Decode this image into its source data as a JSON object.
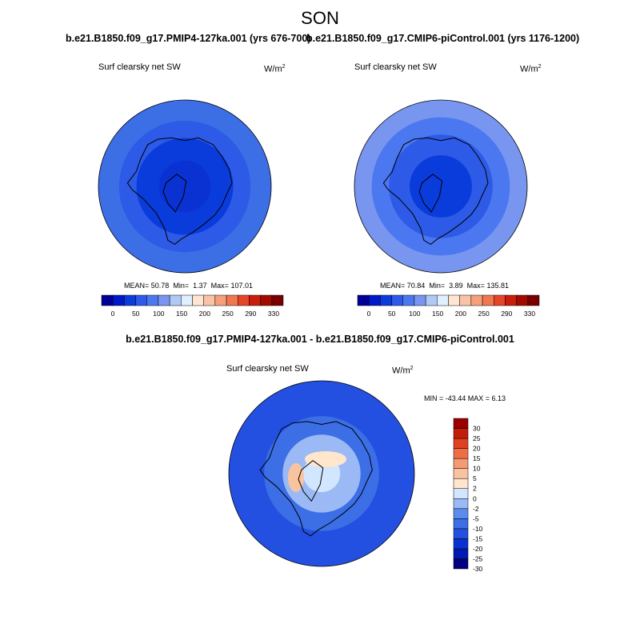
{
  "page": {
    "title": "SON",
    "diff_title": "b.e21.B1850.f09_g17.PMIP4-127ka.001 - b.e21.B1850.f09_g17.CMIP6-piControl.001"
  },
  "colors": {
    "abs_scale": [
      "#000096",
      "#0019c8",
      "#0a3cdc",
      "#2d5ae6",
      "#4b78f0",
      "#7896f0",
      "#afc8f5",
      "#e1f0ff",
      "#ffe6d2",
      "#fac3a5",
      "#f5a078",
      "#f07850",
      "#e64628",
      "#c81e0a",
      "#a00a00",
      "#780000"
    ],
    "diff_scale": [
      "#000080",
      "#0019b4",
      "#0a32d2",
      "#2350e1",
      "#3c6ee6",
      "#5a8cf0",
      "#9bbaf5",
      "#d2e6ff",
      "#ffe6cd",
      "#fac3a0",
      "#f59b73",
      "#f06e46",
      "#e14123",
      "#c31e0a",
      "#9b0000"
    ]
  },
  "chart_data": [
    {
      "type": "heatmap",
      "projection": "north-polar-stereographic",
      "title": "b.e21.B1850.f09_g17.PMIP4-127ka.001 (yrs 676-700)",
      "field_label": "Surf clearsky net SW",
      "units_base": "W/m",
      "units_exp": "2",
      "stats": {
        "mean": "50.78",
        "min": "1.37",
        "max": "107.01"
      },
      "stats_label": {
        "mean": "MEAN=",
        "min": "Min=",
        "max": "Max="
      },
      "colorbar_ticks": [
        "0",
        "50",
        "100",
        "150",
        "200",
        "250",
        "290",
        "330"
      ],
      "field_rings": [
        {
          "color": "#3c6ee6",
          "radius_frac": 1.0
        },
        {
          "color": "#2d5ae6",
          "radius_frac": 0.76
        },
        {
          "color": "#0a3cdc",
          "radius_frac": 0.56
        },
        {
          "color": "#0a32d2",
          "radius_frac": 0.3
        }
      ]
    },
    {
      "type": "heatmap",
      "projection": "north-polar-stereographic",
      "title": "b.e21.B1850.f09_g17.CMIP6-piControl.001 (yrs 1176-1200)",
      "field_label": "Surf clearsky net SW",
      "units_base": "W/m",
      "units_exp": "2",
      "stats": {
        "mean": "70.84",
        "min": "3.89",
        "max": "135.81"
      },
      "stats_label": {
        "mean": "MEAN=",
        "min": "Min=",
        "max": "Max="
      },
      "colorbar_ticks": [
        "0",
        "50",
        "100",
        "150",
        "200",
        "250",
        "290",
        "330"
      ],
      "field_rings": [
        {
          "color": "#7896f0",
          "radius_frac": 1.0
        },
        {
          "color": "#4b78f0",
          "radius_frac": 0.8
        },
        {
          "color": "#2d5ae6",
          "radius_frac": 0.6
        },
        {
          "color": "#0a3cdc",
          "radius_frac": 0.36
        }
      ]
    },
    {
      "type": "heatmap",
      "projection": "north-polar-stereographic",
      "title": "",
      "field_label": "Surf clearsky net SW",
      "units_base": "W/m",
      "units_exp": "2",
      "stats_text": "MIN = -43.44 MAX =   6.13",
      "colorbar_ticks": [
        "30",
        "25",
        "20",
        "15",
        "10",
        "5",
        "2",
        "0",
        "-2",
        "-5",
        "-10",
        "-15",
        "-20",
        "-25",
        "-30"
      ],
      "colorbar_orientation": "vertical",
      "field_rings": [
        {
          "color": "#2350e1",
          "radius_frac": 1.0
        },
        {
          "color": "#3c6ee6",
          "radius_frac": 0.62
        },
        {
          "color": "#9bbaf5",
          "radius_frac": 0.42
        },
        {
          "color": "#d2e6ff",
          "radius_frac": 0.2
        }
      ]
    }
  ]
}
